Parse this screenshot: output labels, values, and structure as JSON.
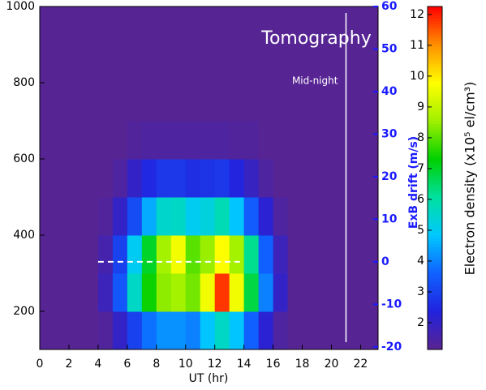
{
  "chart_data": {
    "type": "heatmap",
    "title": "Tomography",
    "xlabel": "UT (hr)",
    "y2label": "ExB drift (m/s)",
    "colorbar_label": "Electron density (x10⁵ el/cm³)",
    "xlim": [
      0,
      23.2
    ],
    "xticks": [
      0,
      2,
      4,
      6,
      8,
      10,
      12,
      14,
      16,
      18,
      20,
      22
    ],
    "ylim": [
      100,
      1000
    ],
    "yticks": [
      200,
      400,
      600,
      800,
      1000
    ],
    "y2lim": [
      -20.6,
      60
    ],
    "y2ticks": [
      -20,
      -10,
      0,
      10,
      20,
      30,
      40,
      50,
      60
    ],
    "y2color": "#1a1aff",
    "clim": [
      1.13,
      12.26
    ],
    "cticks": [
      2,
      3,
      4,
      5,
      6,
      7,
      8,
      9,
      10,
      11,
      12
    ],
    "colormap": [
      "#5a2490",
      "#2222dd",
      "#1060ff",
      "#00c8ff",
      "#00e0a0",
      "#00d000",
      "#a0f000",
      "#ffff00",
      "#ff9000",
      "#ff0000"
    ],
    "x": [
      0.5,
      1.5,
      2.5,
      3.5,
      4.5,
      5.5,
      6.5,
      7.5,
      8.5,
      9.5,
      10.5,
      11.5,
      12.5,
      13.5,
      14.5,
      15.5,
      16.5,
      17.5,
      18.5,
      19.5,
      20.5,
      21.5,
      22.5
    ],
    "y": [
      150,
      250,
      350,
      450,
      550,
      650,
      750,
      850,
      950
    ],
    "z": [
      [
        1.2,
        1.2,
        1.2,
        1.2,
        1.3,
        2.0,
        3.0,
        3.8,
        4.2,
        4.2,
        4.0,
        4.8,
        5.6,
        4.8,
        3.6,
        2.2,
        1.4,
        1.2,
        1.2,
        1.2,
        1.2,
        1.2,
        1.2
      ],
      [
        1.2,
        1.2,
        1.2,
        1.2,
        1.8,
        3.4,
        5.6,
        7.4,
        8.4,
        8.6,
        8.2,
        9.6,
        11.8,
        9.6,
        6.8,
        4.0,
        2.0,
        1.2,
        1.2,
        1.2,
        1.2,
        1.2,
        1.2
      ],
      [
        1.2,
        1.2,
        1.2,
        1.2,
        1.6,
        3.0,
        5.0,
        7.0,
        8.6,
        9.6,
        8.0,
        8.5,
        9.8,
        8.6,
        6.2,
        3.6,
        1.8,
        1.2,
        1.2,
        1.2,
        1.2,
        1.2,
        1.2
      ],
      [
        1.2,
        1.2,
        1.2,
        1.2,
        1.3,
        2.0,
        3.2,
        4.5,
        5.5,
        5.6,
        5.0,
        5.3,
        5.8,
        4.8,
        3.5,
        2.2,
        1.4,
        1.2,
        1.2,
        1.2,
        1.2,
        1.2,
        1.2
      ],
      [
        1.2,
        1.2,
        1.2,
        1.2,
        1.2,
        1.4,
        2.0,
        2.5,
        2.8,
        2.8,
        2.6,
        2.7,
        2.8,
        2.4,
        1.9,
        1.4,
        1.2,
        1.2,
        1.2,
        1.2,
        1.2,
        1.2,
        1.2
      ],
      [
        1.2,
        1.2,
        1.2,
        1.2,
        1.2,
        1.2,
        1.3,
        1.4,
        1.4,
        1.4,
        1.4,
        1.4,
        1.4,
        1.3,
        1.3,
        1.2,
        1.2,
        1.2,
        1.2,
        1.2,
        1.2,
        1.2,
        1.2
      ],
      [
        1.2,
        1.2,
        1.2,
        1.2,
        1.2,
        1.2,
        1.2,
        1.2,
        1.2,
        1.2,
        1.2,
        1.2,
        1.2,
        1.2,
        1.2,
        1.2,
        1.2,
        1.2,
        1.2,
        1.2,
        1.2,
        1.2,
        1.2
      ],
      [
        1.2,
        1.2,
        1.2,
        1.2,
        1.2,
        1.2,
        1.2,
        1.2,
        1.2,
        1.2,
        1.2,
        1.2,
        1.2,
        1.2,
        1.2,
        1.2,
        1.2,
        1.2,
        1.2,
        1.2,
        1.2,
        1.2,
        1.2
      ],
      [
        1.2,
        1.2,
        1.2,
        1.2,
        1.2,
        1.2,
        1.2,
        1.2,
        1.2,
        1.2,
        1.2,
        1.2,
        1.2,
        1.2,
        1.2,
        1.2,
        1.2,
        1.2,
        1.2,
        1.2,
        1.2,
        1.2,
        1.2
      ]
    ],
    "drift": {
      "x": [
        4,
        5,
        6,
        7,
        8,
        9,
        10,
        11,
        12,
        13,
        14
      ],
      "values": [
        0,
        0,
        0,
        0,
        0,
        0,
        0,
        0,
        0,
        0,
        0
      ],
      "axis": "y2",
      "color": "#ffffff"
    },
    "vline": {
      "x": 21,
      "label": "Mid-night",
      "color": "#ffffff"
    }
  }
}
